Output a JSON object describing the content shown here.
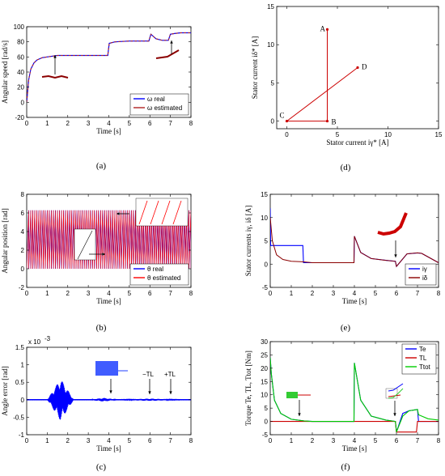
{
  "chart_data": [
    {
      "id": "a",
      "caption": "(a)",
      "type": "line",
      "xlabel": "Time [s]",
      "ylabel": "Angular speed [rad/s]",
      "xlim": [
        0,
        8
      ],
      "ylim": [
        -20,
        100
      ],
      "xticks": [
        "0",
        "1",
        "2",
        "3",
        "4",
        "5",
        "6",
        "7",
        "8"
      ],
      "yticks": [
        "-20",
        "0",
        "20",
        "40",
        "60",
        "80",
        "100"
      ],
      "legend_position": "lower-right",
      "series": [
        {
          "name": "ω real",
          "color": "#0000ff",
          "x": [
            0,
            0.1,
            0.2,
            0.35,
            0.5,
            0.75,
            1,
            1.5,
            2,
            3,
            3.95,
            4.02,
            4.3,
            5,
            5.5,
            5.95,
            6.05,
            6.3,
            6.6,
            6.9,
            7,
            7.2,
            7.5,
            8
          ],
          "y": [
            0,
            30,
            44,
            52,
            56,
            59,
            60,
            62,
            62,
            62,
            62,
            78,
            80,
            81,
            81,
            81,
            90,
            84,
            82,
            82,
            90,
            91,
            92,
            92
          ]
        },
        {
          "name": "ω estimated",
          "color": "#b22222",
          "x": [
            0,
            0.1,
            0.2,
            0.35,
            0.5,
            0.75,
            1,
            1.5,
            2,
            3,
            3.95,
            4.02,
            4.3,
            5,
            5.5,
            5.95,
            6.05,
            6.3,
            6.6,
            6.9,
            7,
            7.2,
            7.5,
            8
          ],
          "y": [
            0,
            30,
            44,
            52,
            56,
            59,
            60,
            62,
            62,
            62,
            62,
            78,
            80,
            81,
            81,
            81,
            90,
            84,
            82,
            82,
            90,
            91,
            92,
            92
          ]
        }
      ]
    },
    {
      "id": "b",
      "caption": "(b)",
      "type": "line",
      "xlabel": "Time [s]",
      "ylabel": "Angular position [rad]",
      "xlim": [
        0,
        8
      ],
      "ylim": [
        -2,
        8
      ],
      "xticks": [
        "0",
        "1",
        "2",
        "3",
        "4",
        "5",
        "6",
        "7",
        "8"
      ],
      "yticks": [
        "-2",
        "0",
        "2",
        "4",
        "6",
        "8"
      ],
      "legend_position": "lower-right",
      "sawtooth_period_s": 0.1,
      "sawtooth_range": [
        0,
        6.28
      ],
      "series": [
        {
          "name": "θ real",
          "color": "#0000ff"
        },
        {
          "name": "θ estimated",
          "color": "#ff0000"
        }
      ]
    },
    {
      "id": "c",
      "caption": "(c)",
      "type": "line",
      "xlabel": "Time [s]",
      "ylabel": "Angle error [rad]",
      "exponent_label": "x 10",
      "exponent_power": "-3",
      "xlim": [
        0,
        8
      ],
      "ylim": [
        -1,
        1.5
      ],
      "xticks": [
        "0",
        "1",
        "2",
        "3",
        "4",
        "5",
        "6",
        "7",
        "8"
      ],
      "yticks": [
        "-1",
        "-0.5",
        "0",
        "0.5",
        "1",
        "1.5"
      ],
      "annotations": [
        "−TL",
        "+TL"
      ],
      "series": [
        {
          "name": "angle error",
          "color": "#0000ff",
          "bursts": [
            {
              "x0": 1.0,
              "x1": 2.3,
              "amp": 0.6
            },
            {
              "x0": 3.0,
              "x1": 4.5,
              "amp": 0.05
            },
            {
              "x0": 4.0,
              "x1": 8.0,
              "amp": 0.03
            }
          ]
        }
      ]
    },
    {
      "id": "d",
      "caption": "(d)",
      "type": "line",
      "xlabel": "Stator current iγ* [A]",
      "ylabel": "Stator current iδ* [A]",
      "xlim": [
        -1,
        15
      ],
      "ylim": [
        -1,
        15
      ],
      "xticks": [
        "0",
        "5",
        "10",
        "15"
      ],
      "yticks": [
        "0",
        "5",
        "10",
        "15"
      ],
      "point_labels": [
        {
          "label": "A",
          "x": 4,
          "y": 12
        },
        {
          "label": "B",
          "x": 4,
          "y": 0
        },
        {
          "label": "C",
          "x": 0,
          "y": 0
        },
        {
          "label": "D",
          "x": 7,
          "y": 7
        }
      ],
      "series": [
        {
          "name": "trajectory",
          "color": "#cc0000",
          "x": [
            4,
            4,
            0,
            7
          ],
          "y": [
            12,
            0,
            0,
            7
          ]
        }
      ]
    },
    {
      "id": "e",
      "caption": "(e)",
      "type": "line",
      "xlabel": "Time [s]",
      "ylabel": "Stator currents iγ, iδ [A]",
      "xlim": [
        0,
        8
      ],
      "ylim": [
        -5,
        15
      ],
      "xticks": [
        "0",
        "1",
        "2",
        "3",
        "4",
        "5",
        "6",
        "7",
        "8"
      ],
      "yticks": [
        "-5",
        "0",
        "5",
        "10",
        "15"
      ],
      "legend_position": "lower-right",
      "series": [
        {
          "name": "iγ",
          "color": "#0000ff",
          "x": [
            0,
            0.02,
            0.3,
            1.55,
            1.58,
            3.98,
            4.0,
            4.3,
            4.8,
            5.5,
            5.95,
            6.0,
            6.5,
            7,
            7.2,
            8
          ],
          "y": [
            12,
            4,
            4,
            4,
            0.3,
            0.3,
            6,
            2.5,
            1.2,
            0.8,
            0.6,
            -0.5,
            2.2,
            2.4,
            2.3,
            0.3
          ]
        },
        {
          "name": "iδ",
          "color": "#8b0000",
          "x": [
            0,
            0.1,
            0.3,
            0.6,
            1,
            1.55,
            2,
            3,
            3.98,
            4.0,
            4.3,
            4.8,
            5.5,
            5.95,
            6.0,
            6.5,
            7,
            7.2,
            8
          ],
          "y": [
            10,
            5,
            2,
            1,
            0.6,
            0.5,
            0.3,
            0.3,
            0.3,
            6,
            2.5,
            1.2,
            0.8,
            0.6,
            -0.5,
            2.2,
            2.4,
            2.3,
            0.3
          ]
        }
      ]
    },
    {
      "id": "f",
      "caption": "(f)",
      "type": "line",
      "xlabel": "Time [s]",
      "ylabel": "Torque Te, TL, Ttot [Nm]",
      "xlim": [
        0,
        8
      ],
      "ylim": [
        -5,
        30
      ],
      "xticks": [
        "0",
        "1",
        "2",
        "3",
        "4",
        "5",
        "6",
        "7",
        "8"
      ],
      "yticks": [
        "-5",
        "0",
        "5",
        "10",
        "15",
        "20",
        "25",
        "30"
      ],
      "legend_position": "top-right",
      "series": [
        {
          "name": "Te",
          "color": "#0000ff",
          "x": [
            0,
            0.05,
            0.2,
            0.5,
            1,
            1.6,
            2,
            3,
            3.98,
            4.0,
            4.3,
            4.8,
            5.5,
            5.95,
            6.0,
            6.3,
            6.6,
            7.0,
            7.05,
            8
          ],
          "y": [
            24,
            18,
            8,
            3,
            0.8,
            0.2,
            0,
            0,
            0,
            22,
            8,
            2,
            0.5,
            0,
            -4,
            3,
            4,
            4.5,
            0,
            0
          ]
        },
        {
          "name": "TL",
          "color": "#cc0000",
          "x": [
            0,
            5.95,
            6.0,
            6.95,
            7.0,
            8
          ],
          "y": [
            0,
            0,
            -4,
            -4,
            0,
            0
          ]
        },
        {
          "name": "Ttot",
          "color": "#00cc00",
          "x": [
            0,
            0.05,
            0.2,
            0.5,
            1,
            1.6,
            2,
            3,
            3.98,
            4.0,
            4.3,
            4.8,
            5.5,
            5.95,
            6.0,
            6.3,
            6.6,
            7.0,
            7.05,
            7.5,
            8
          ],
          "y": [
            24,
            18,
            8,
            3,
            0.8,
            0.2,
            0,
            0,
            0,
            22,
            8,
            2,
            0.5,
            0,
            -4,
            2,
            4,
            4.5,
            2.5,
            1,
            0.5
          ]
        }
      ]
    }
  ]
}
